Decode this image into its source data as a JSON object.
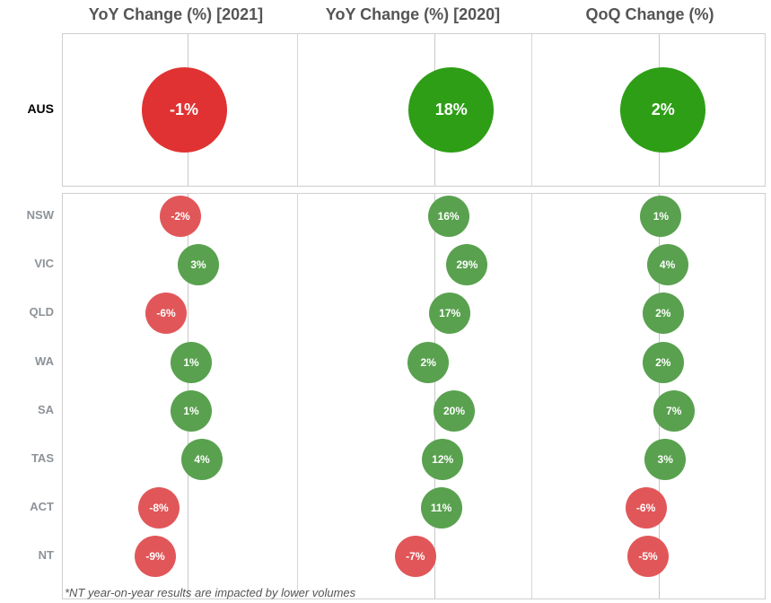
{
  "columns": [
    "YoY Change (%) [2021]",
    "YoY Change (%) [2020]",
    "QoQ Change (%)"
  ],
  "colors": {
    "negative_total": "#e03232",
    "positive_total": "#2e9e16",
    "negative_state": "#e15759",
    "positive_state": "#59a14f"
  },
  "chart_data": {
    "type": "scatter",
    "encoding": "bubble-strip",
    "series": [
      "YoY Change (%) [2021]",
      "YoY Change (%) [2020]",
      "QoQ Change (%)"
    ],
    "total": {
      "name": "AUS",
      "values": [
        -1,
        18,
        2
      ],
      "labels": [
        "-1%",
        "18%",
        "2%"
      ]
    },
    "rows": [
      {
        "name": "NSW",
        "values": [
          -2,
          16,
          1
        ],
        "labels": [
          "-2%",
          "16%",
          "1%"
        ]
      },
      {
        "name": "VIC",
        "values": [
          3,
          29,
          4
        ],
        "labels": [
          "3%",
          "29%",
          "4%"
        ]
      },
      {
        "name": "QLD",
        "values": [
          -6,
          17,
          2
        ],
        "labels": [
          "-6%",
          "17%",
          "2%"
        ]
      },
      {
        "name": "WA",
        "values": [
          1,
          2,
          2
        ],
        "labels": [
          "1%",
          "2%",
          "2%"
        ]
      },
      {
        "name": "SA",
        "values": [
          1,
          20,
          7
        ],
        "labels": [
          "1%",
          "20%",
          "7%"
        ]
      },
      {
        "name": "TAS",
        "values": [
          4,
          12,
          3
        ],
        "labels": [
          "4%",
          "12%",
          "3%"
        ]
      },
      {
        "name": "ACT",
        "values": [
          -8,
          11,
          -6
        ],
        "labels": [
          "-8%",
          "11%",
          "-6%"
        ]
      },
      {
        "name": "NT",
        "values": [
          -9,
          -7,
          -5
        ],
        "labels": [
          "-9%",
          "-7%",
          "-5%"
        ]
      }
    ]
  },
  "footnote": "*NT year-on-year results are impacted by lower volumes"
}
